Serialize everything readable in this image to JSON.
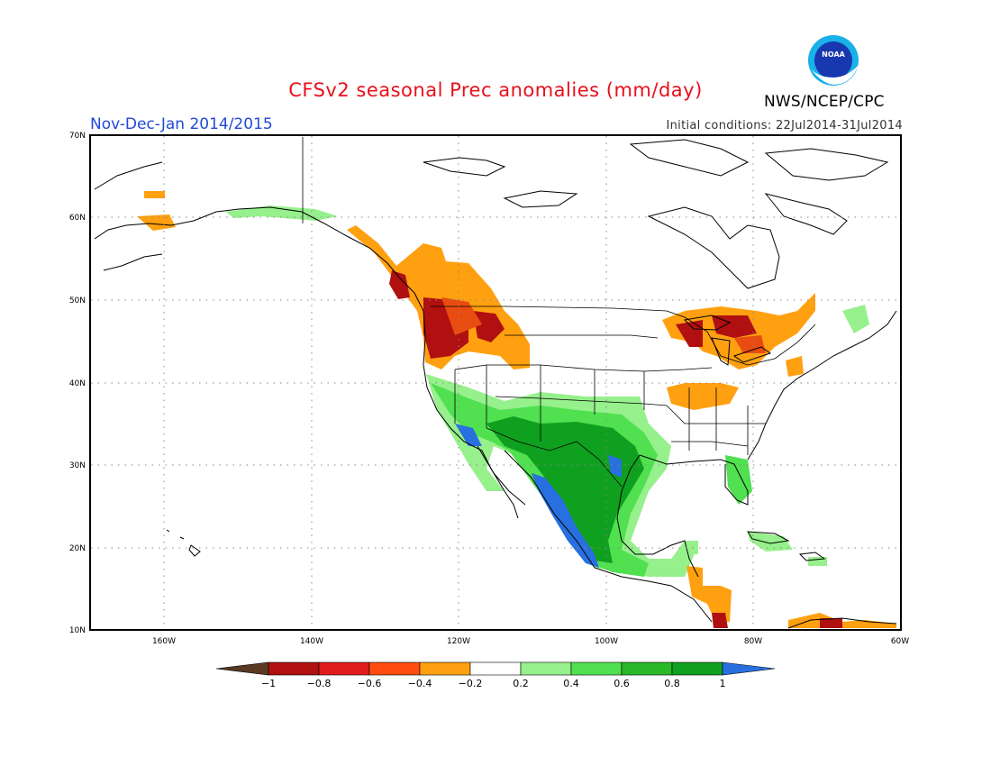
{
  "header": {
    "title": "CFSv2 seasonal Prec anomalies (mm/day)",
    "period": "Nov-Dec-Jan 2014/2015",
    "initial_conditions": "Initial conditions: 22Jul2014-31Jul2014",
    "agency": "NWS/NCEP/CPC",
    "logo_text": "NOAA"
  },
  "map": {
    "lon_labels": [
      "160W",
      "140W",
      "120W",
      "100W",
      "80W",
      "60W"
    ],
    "lat_labels": [
      "70N",
      "60N",
      "50N",
      "40N",
      "30N",
      "20N",
      "10N"
    ],
    "lon_range": [
      -170,
      -60
    ],
    "lat_range": [
      10,
      70
    ],
    "grid": "dotted"
  },
  "legend": {
    "ticks": [
      "-1",
      "-0.8",
      "-0.6",
      "-0.4",
      "-0.2",
      "0.2",
      "0.4",
      "0.6",
      "0.8",
      "1"
    ],
    "colors": [
      "#5a3a22",
      "#b01010",
      "#e01c1c",
      "#ff4d10",
      "#ffa010",
      "#ffffff",
      "#96f08c",
      "#50e050",
      "#28b828",
      "#10a020",
      "#2870e0"
    ]
  },
  "colors": {
    "dry_strong": "#b01010",
    "dry_moderate": "#e84c10",
    "dry_weak": "#ffa010",
    "wet_weak": "#96f08c",
    "wet_moderate": "#50e050",
    "wet_strong": "#10a020",
    "wet_extreme": "#2870e0"
  }
}
